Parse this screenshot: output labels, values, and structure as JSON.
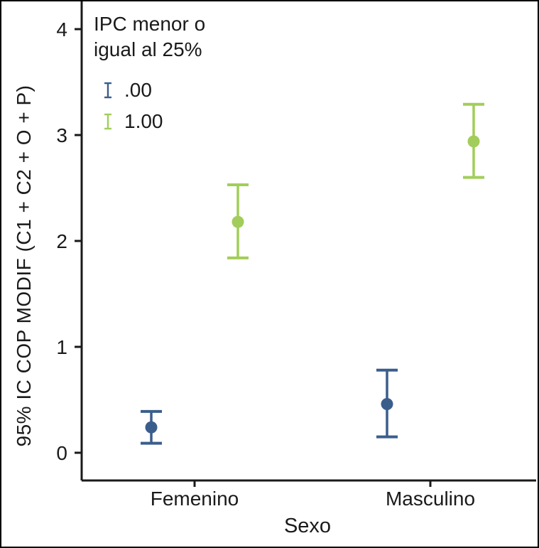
{
  "figure": {
    "background": "#ffffff",
    "frame_color": "#000000",
    "axis_color": "#1a1a1a"
  },
  "chart_data": {
    "type": "errorbar",
    "title": "",
    "xlabel": "Sexo",
    "ylabel": "95% IC COP MODIF (C1 + C2 + O + P)",
    "categories": [
      "Femenino",
      "Masculino"
    ],
    "ylim": [
      0,
      4
    ],
    "yticks": [
      0,
      1,
      2,
      3,
      4
    ],
    "grid": false,
    "legend": {
      "position": "inside-top-left",
      "title_lines": "IPC menor o\nigual al 25%",
      "entries": [
        {
          "label": ".00",
          "color": "#3A5E8C"
        },
        {
          "label": "1.00",
          "color": "#A2CD5A"
        }
      ]
    },
    "series": [
      {
        "name": ".00",
        "color": "#3A5E8C",
        "points": [
          {
            "category": "Femenino",
            "mean": 0.24,
            "ci_low": 0.09,
            "ci_high": 0.39
          },
          {
            "category": "Masculino",
            "mean": 0.46,
            "ci_low": 0.15,
            "ci_high": 0.78
          }
        ]
      },
      {
        "name": "1.00",
        "color": "#A2CD5A",
        "points": [
          {
            "category": "Femenino",
            "mean": 2.18,
            "ci_low": 1.84,
            "ci_high": 2.53
          },
          {
            "category": "Masculino",
            "mean": 2.94,
            "ci_low": 2.6,
            "ci_high": 3.29
          }
        ]
      }
    ]
  }
}
